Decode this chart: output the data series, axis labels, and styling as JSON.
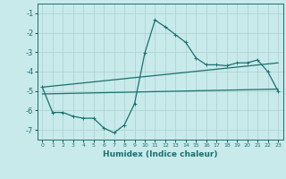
{
  "xlabel": "Humidex (Indice chaleur)",
  "background_color": "#c8eaea",
  "grid_color": "#b0d4d4",
  "line_color": "#1a7070",
  "xlim": [
    -0.5,
    23.5
  ],
  "ylim": [
    -7.5,
    -0.5
  ],
  "yticks": [
    -7,
    -6,
    -5,
    -4,
    -3,
    -2,
    -1
  ],
  "xticks": [
    0,
    1,
    2,
    3,
    4,
    5,
    6,
    7,
    8,
    9,
    10,
    11,
    12,
    13,
    14,
    15,
    16,
    17,
    18,
    19,
    20,
    21,
    22,
    23
  ],
  "line1_x": [
    0,
    1,
    2,
    3,
    4,
    5,
    6,
    7,
    8,
    9,
    10,
    11,
    12,
    13,
    14,
    15,
    16,
    17,
    18,
    19,
    20,
    21,
    22,
    23
  ],
  "line1_y": [
    -4.8,
    -6.1,
    -6.1,
    -6.3,
    -6.4,
    -6.4,
    -6.9,
    -7.15,
    -6.75,
    -5.65,
    -3.05,
    -1.35,
    -1.7,
    -2.1,
    -2.5,
    -3.3,
    -3.65,
    -3.65,
    -3.7,
    -3.55,
    -3.55,
    -3.4,
    -4.0,
    -5.0
  ],
  "line2_x": [
    0,
    23
  ],
  "line2_y": [
    -4.8,
    -4.9
  ],
  "line3_x": [
    0,
    23
  ],
  "line3_y": [
    -4.95,
    -5.0
  ],
  "line4_x": [
    0,
    23
  ],
  "line4_y": [
    -5.1,
    -5.1
  ]
}
